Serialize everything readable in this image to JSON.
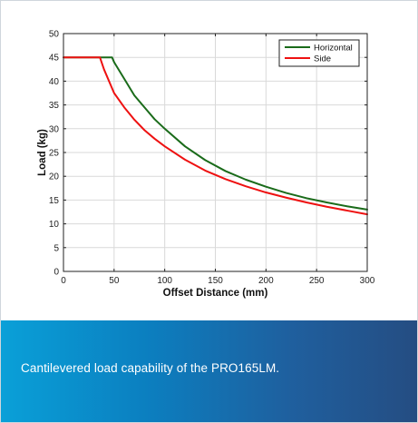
{
  "caption": "Cantilevered load capability of the PRO165LM.",
  "colors": {
    "horizontal": "#1a6b1a",
    "side": "#ee1111",
    "caption_band": "#0b7fc0"
  },
  "chart_data": {
    "type": "line",
    "xlabel": "Offset Distance (mm)",
    "ylabel": "Load (kg)",
    "xlim": [
      0,
      300
    ],
    "ylim": [
      0,
      50
    ],
    "xticks": [
      0,
      50,
      100,
      150,
      200,
      250,
      300
    ],
    "yticks": [
      0,
      5,
      10,
      15,
      20,
      25,
      30,
      35,
      40,
      45,
      50
    ],
    "grid": true,
    "legend_position": "top-right",
    "series": [
      {
        "name": "Horizontal",
        "color": "#1a6b1a",
        "x": [
          0,
          48,
          50,
          60,
          70,
          80,
          90,
          100,
          120,
          140,
          160,
          180,
          200,
          220,
          240,
          260,
          280,
          300
        ],
        "y": [
          45,
          45,
          44,
          40.5,
          37,
          34.5,
          32,
          30,
          26.3,
          23.4,
          21.1,
          19.3,
          17.8,
          16.5,
          15.4,
          14.5,
          13.7,
          13
        ]
      },
      {
        "name": "Side",
        "color": "#ee1111",
        "x": [
          0,
          36,
          40,
          50,
          60,
          70,
          80,
          90,
          100,
          120,
          140,
          160,
          180,
          200,
          220,
          240,
          260,
          280,
          300
        ],
        "y": [
          45,
          45,
          42.5,
          37.5,
          34.5,
          31.9,
          29.7,
          27.9,
          26.3,
          23.5,
          21.2,
          19.4,
          17.9,
          16.6,
          15.5,
          14.5,
          13.6,
          12.8,
          12
        ]
      }
    ]
  }
}
